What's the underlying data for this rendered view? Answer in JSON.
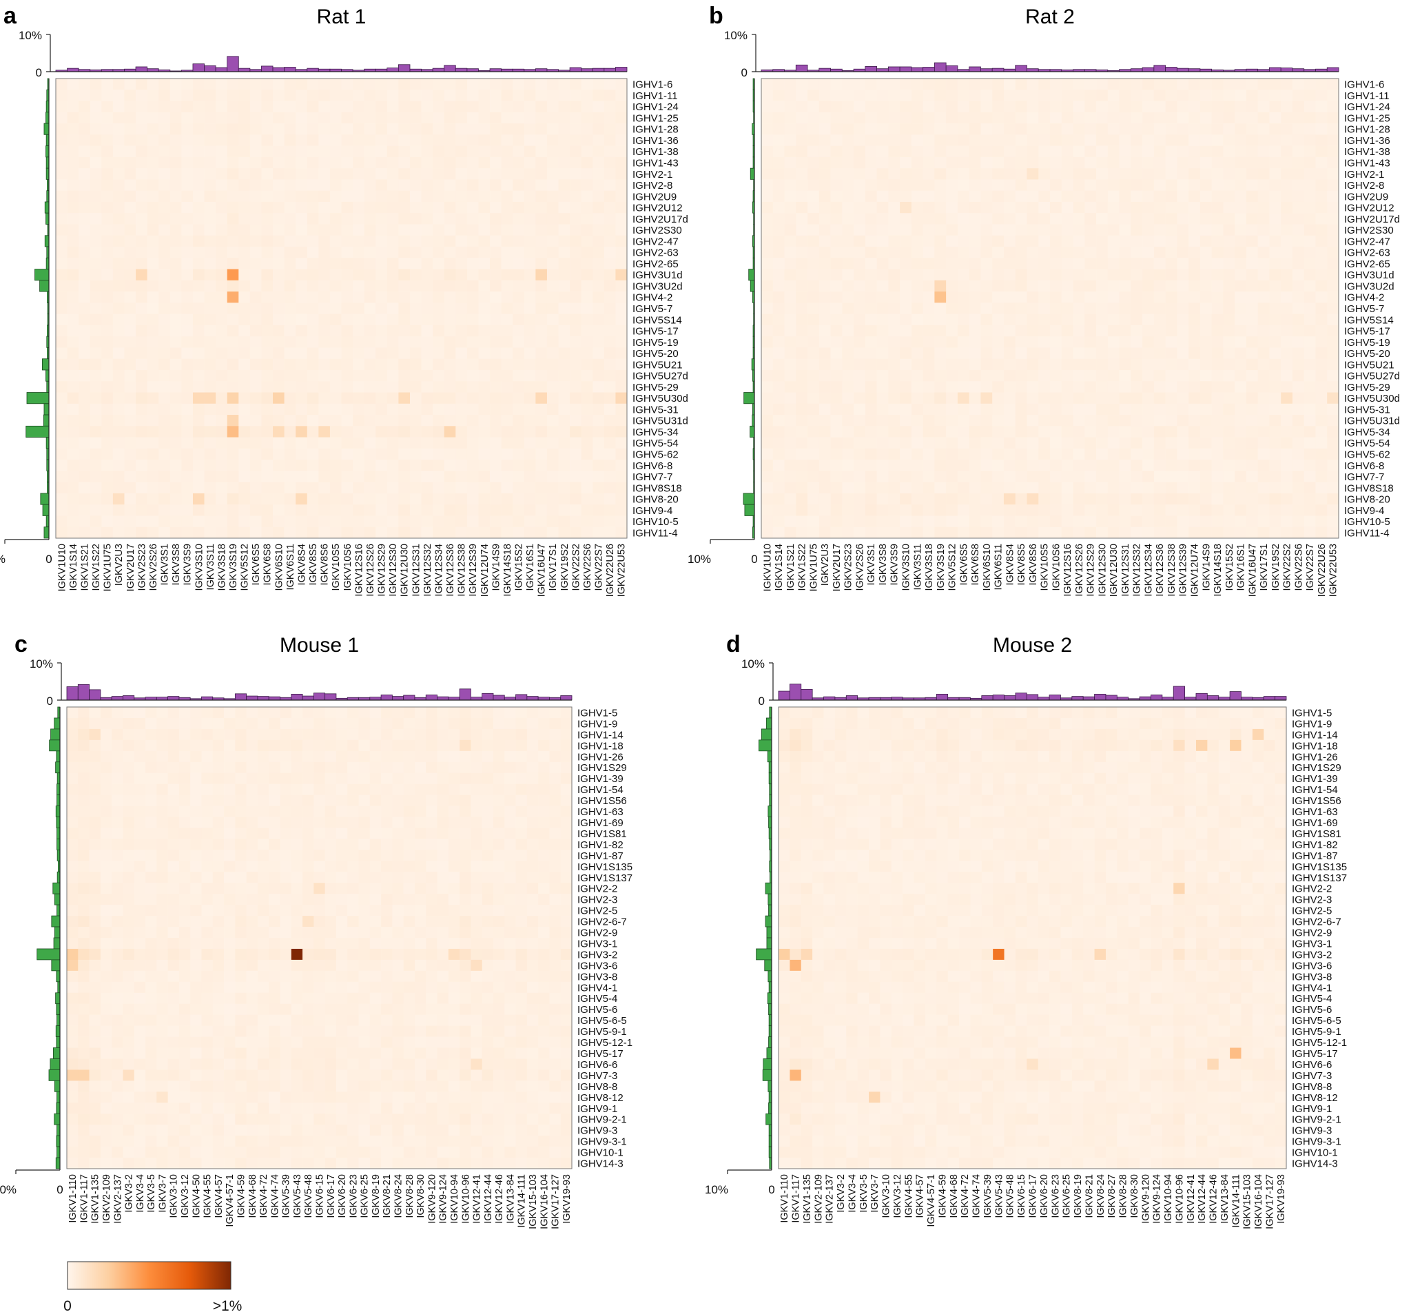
{
  "figure": {
    "colorbar": {
      "min_label": "0",
      "max_label": ">1%",
      "colors": [
        "#fff5ec",
        "#fdd0a2",
        "#fd8d3c",
        "#e55a0a",
        "#7f2704"
      ]
    },
    "bar_colors": {
      "top": "#9b4fb0",
      "side": "#3fa848"
    },
    "cell_base_color": "#fff5ec"
  },
  "chart_data": [
    {
      "type": "heatmap",
      "panel_letter": "a",
      "title": "Rat 1",
      "top_axis": {
        "max_label": "10%",
        "zero_label": "0"
      },
      "side_axis": {
        "max_label": "10%",
        "zero_label": "0"
      },
      "x": [
        "IGKV1U10",
        "IGKV1S14",
        "IGKV1S21",
        "IGKV1S22",
        "IGKV1U75",
        "IGKV2U3",
        "IGKV2U17",
        "IGKV2S23",
        "IGKV2S26",
        "IGKV3S1",
        "IGKV3S8",
        "IGKV3S9",
        "IGKV3S10",
        "IGKV3S11",
        "IGKV3S18",
        "IGKV3S19",
        "IGKV5S12",
        "IGKV6S5",
        "IGKV6S8",
        "IGKV6S10",
        "IGKV6S11",
        "IGKV8S4",
        "IGKV8S5",
        "IGKV8S6",
        "IGKV10S5",
        "IGKV10S6",
        "IGKV12S16",
        "IGKV12S26",
        "IGKV12S29",
        "IGKV12S30",
        "IGKV12U30",
        "IGKV12S31",
        "IGKV12S32",
        "IGKV12S34",
        "IGKV12S36",
        "IGKV12S38",
        "IGKV12S39",
        "IGKV12U74",
        "IGKV14S9",
        "IGKV14S18",
        "IGKV15S2",
        "IGKV16S1",
        "IGKV16U47",
        "IGKV17S1",
        "IGKV19S2",
        "IGKV22S2",
        "IGKV22S6",
        "IGKV22S7",
        "IGKV22U26",
        "IGKV22U53"
      ],
      "y": [
        "IGHV1-6",
        "IGHV1-11",
        "IGHV1-24",
        "IGHV1-25",
        "IGHV1-28",
        "IGHV1-36",
        "IGHV1-38",
        "IGHV1-43",
        "IGHV2-1",
        "IGHV2-8",
        "IGHV2U9",
        "IGHV2U12",
        "IGHV2U17d",
        "IGHV2S30",
        "IGHV2-47",
        "IGHV2-63",
        "IGHV2-65",
        "IGHV3U1d",
        "IGHV3U2d",
        "IGHV4-2",
        "IGHV5-7",
        "IGHV5S14",
        "IGHV5-17",
        "IGHV5-19",
        "IGHV5-20",
        "IGHV5U21",
        "IGHV5U27d",
        "IGHV5-29",
        "IGHV5U30d",
        "IGHV5-31",
        "IGHV5U31d",
        "IGHV5-34",
        "IGHV5-54",
        "IGHV5-62",
        "IGHV6-8",
        "IGHV7-7",
        "IGHV8S18",
        "IGHV8-20",
        "IGHV9-4",
        "IGHV10-5",
        "IGHV11-4"
      ],
      "top_values": [
        0.4,
        0.9,
        0.6,
        0.5,
        0.6,
        0.6,
        0.7,
        1.3,
        0.8,
        0.5,
        0.2,
        0.4,
        2.1,
        1.6,
        1.1,
        4.1,
        0.9,
        0.6,
        1.5,
        1.1,
        1.2,
        0.6,
        0.9,
        0.7,
        0.7,
        0.6,
        0.4,
        0.7,
        0.7,
        1.0,
        1.9,
        0.7,
        0.6,
        0.9,
        1.7,
        0.9,
        0.8,
        0.3,
        0.8,
        0.7,
        0.7,
        0.6,
        0.8,
        0.6,
        0.4,
        1.1,
        0.8,
        0.9,
        0.9,
        1.2
      ],
      "side_values": [
        0.3,
        0.5,
        0.6,
        0.7,
        1.1,
        0.6,
        0.7,
        0.6,
        0.6,
        0.4,
        0.5,
        0.9,
        0.7,
        0.3,
        0.9,
        0.5,
        0.6,
        3.2,
        2.1,
        0.4,
        0.3,
        0.3,
        0.4,
        0.5,
        0.4,
        1.5,
        0.7,
        0.5,
        5.0,
        1.1,
        1.2,
        5.2,
        0.6,
        0.5,
        0.5,
        0.4,
        0.4,
        1.9,
        1.4,
        0.6,
        1.1
      ],
      "hot_cells": [
        [
          17,
          15,
          0.45
        ],
        [
          19,
          15,
          0.38
        ],
        [
          31,
          15,
          0.32
        ],
        [
          28,
          15,
          0.22
        ],
        [
          30,
          15,
          0.2
        ],
        [
          17,
          7,
          0.18
        ],
        [
          17,
          42,
          0.2
        ],
        [
          17,
          49,
          0.17
        ],
        [
          28,
          19,
          0.22
        ],
        [
          28,
          30,
          0.17
        ],
        [
          28,
          42,
          0.18
        ],
        [
          28,
          49,
          0.18
        ],
        [
          28,
          12,
          0.18
        ],
        [
          28,
          13,
          0.18
        ],
        [
          31,
          34,
          0.2
        ],
        [
          31,
          21,
          0.2
        ],
        [
          31,
          19,
          0.17
        ],
        [
          31,
          23,
          0.17
        ],
        [
          37,
          12,
          0.18
        ],
        [
          37,
          21,
          0.17
        ],
        [
          37,
          5,
          0.14
        ]
      ]
    },
    {
      "type": "heatmap",
      "panel_letter": "b",
      "title": "Rat 2",
      "top_axis": {
        "max_label": "10%",
        "zero_label": "0"
      },
      "side_axis": {
        "max_label": "10%",
        "zero_label": "0"
      },
      "x": [
        "IGKV1U10",
        "IGKV1S14",
        "IGKV1S21",
        "IGKV1S22",
        "IGKV1U75",
        "IGKV2U3",
        "IGKV2U17",
        "IGKV2S23",
        "IGKV2S26",
        "IGKV3S1",
        "IGKV3S8",
        "IGKV3S9",
        "IGKV3S10",
        "IGKV3S11",
        "IGKV3S18",
        "IGKV3S19",
        "IGKV5S12",
        "IGKV6S5",
        "IGKV6S8",
        "IGKV6S10",
        "IGKV6S11",
        "IGKV8S4",
        "IGKV8S5",
        "IGKV8S6",
        "IGKV10S5",
        "IGKV10S6",
        "IGKV12S16",
        "IGKV12S26",
        "IGKV12S29",
        "IGKV12S30",
        "IGKV12U30",
        "IGKV12S31",
        "IGKV12S32",
        "IGKV12S34",
        "IGKV12S36",
        "IGKV12S38",
        "IGKV12S39",
        "IGKV12U74",
        "IGKV14S9",
        "IGKV14S18",
        "IGKV15S2",
        "IGKV16S1",
        "IGKV16U47",
        "IGKV17S1",
        "IGKV19S2",
        "IGKV22S2",
        "IGKV22S6",
        "IGKV22S7",
        "IGKV22U26",
        "IGKV22U53"
      ],
      "y": [
        "IGHV1-6",
        "IGHV1-11",
        "IGHV1-24",
        "IGHV1-25",
        "IGHV1-28",
        "IGHV1-36",
        "IGHV1-38",
        "IGHV1-43",
        "IGHV2-1",
        "IGHV2-8",
        "IGHV2U9",
        "IGHV2U12",
        "IGHV2U17d",
        "IGHV2S30",
        "IGHV2-47",
        "IGHV2-63",
        "IGHV2-65",
        "IGHV3U1d",
        "IGHV3U2d",
        "IGHV4-2",
        "IGHV5-7",
        "IGHV5S14",
        "IGHV5-17",
        "IGHV5-19",
        "IGHV5-20",
        "IGHV5U21",
        "IGHV5U27d",
        "IGHV5-29",
        "IGHV5U30d",
        "IGHV5-31",
        "IGHV5U31d",
        "IGHV5-34",
        "IGHV5-54",
        "IGHV5-62",
        "IGHV6-8",
        "IGHV7-7",
        "IGHV8S18",
        "IGHV8-20",
        "IGHV9-4",
        "IGHV10-5",
        "IGHV11-4"
      ],
      "top_values": [
        0.5,
        0.6,
        0.4,
        1.8,
        0.4,
        0.9,
        0.7,
        0.3,
        0.7,
        1.4,
        0.8,
        1.3,
        1.3,
        1.1,
        1.2,
        2.4,
        1.6,
        0.6,
        1.3,
        0.8,
        0.9,
        0.7,
        1.7,
        0.8,
        0.6,
        0.6,
        0.5,
        0.6,
        0.6,
        0.5,
        0.3,
        0.6,
        0.8,
        1.1,
        1.7,
        1.2,
        0.9,
        0.8,
        0.7,
        0.5,
        0.4,
        0.6,
        0.7,
        0.6,
        1.1,
        1.0,
        0.8,
        0.6,
        0.7,
        1.1
      ],
      "side_values": [
        0.3,
        0.3,
        0.3,
        0.2,
        0.5,
        0.3,
        0.3,
        0.3,
        0.9,
        0.2,
        0.3,
        0.4,
        0.2,
        0.2,
        0.4,
        0.3,
        0.3,
        1.3,
        0.9,
        0.4,
        0.2,
        0.2,
        0.3,
        0.3,
        0.3,
        0.6,
        0.4,
        0.3,
        2.4,
        0.4,
        0.5,
        1.0,
        0.2,
        0.3,
        0.2,
        0.2,
        0.2,
        2.5,
        2.2,
        0.3,
        0.4
      ],
      "hot_cells": [
        [
          19,
          15,
          0.3
        ],
        [
          18,
          15,
          0.18
        ],
        [
          28,
          17,
          0.12
        ],
        [
          28,
          19,
          0.12
        ],
        [
          28,
          45,
          0.13
        ],
        [
          28,
          49,
          0.12
        ],
        [
          37,
          21,
          0.14
        ],
        [
          37,
          23,
          0.14
        ],
        [
          11,
          12,
          0.1
        ],
        [
          8,
          23,
          0.1
        ]
      ]
    },
    {
      "type": "heatmap",
      "panel_letter": "c",
      "title": "Mouse 1",
      "top_axis": {
        "max_label": "10%",
        "zero_label": "0"
      },
      "side_axis": {
        "max_label": "10%",
        "zero_label": "0"
      },
      "x": [
        "IGKV1-110",
        "IGKV1-117",
        "IGKV1-135",
        "IGKV2-109",
        "IGKV2-137",
        "IGKV3-2",
        "IGKV3-4",
        "IGKV3-5",
        "IGKV3-7",
        "IGKV3-10",
        "IGKV3-12",
        "IGKV4-50",
        "IGKV4-55",
        "IGKV4-57",
        "IGKV4-57-1",
        "IGKV4-59",
        "IGKV4-68",
        "IGKV4-72",
        "IGKV4-74",
        "IGKV5-39",
        "IGKV5-43",
        "IGKV5-48",
        "IGKV6-15",
        "IGKV6-17",
        "IGKV6-20",
        "IGKV6-23",
        "IGKV6-25",
        "IGKV8-19",
        "IGKV8-21",
        "IGKV8-24",
        "IGKV8-28",
        "IGKV8-30",
        "IGKV9-120",
        "IGKV9-124",
        "IGKV10-94",
        "IGKV10-96",
        "IGKV12-41",
        "IGKV12-44",
        "IGKV12-46",
        "IGKV13-84",
        "IGKV14-111",
        "IGKV15-103",
        "IGKV16-104",
        "IGKV17-127",
        "IGKV19-93"
      ],
      "y": [
        "IGHV1-5",
        "IGHV1-9",
        "IGHV1-14",
        "IGHV1-18",
        "IGHV1-26",
        "IGHV1S29",
        "IGHV1-39",
        "IGHV1-54",
        "IGHV1S56",
        "IGHV1-63",
        "IGHV1-69",
        "IGHV1S81",
        "IGHV1-82",
        "IGHV1-87",
        "IGHV1S135",
        "IGHV1S137",
        "IGHV2-2",
        "IGHV2-3",
        "IGHV2-5",
        "IGHV2-6-7",
        "IGHV2-9",
        "IGHV3-1",
        "IGHV3-2",
        "IGHV3-6",
        "IGHV3-8",
        "IGHV4-1",
        "IGHV5-4",
        "IGHV5-6",
        "IGHV5-6-5",
        "IGHV5-9-1",
        "IGHV5-12-1",
        "IGHV5-17",
        "IGHV6-6",
        "IGHV7-3",
        "IGHV8-8",
        "IGHV8-12",
        "IGHV9-1",
        "IGHV9-2-1",
        "IGHV9-3",
        "IGHV9-3-1",
        "IGHV10-1",
        "IGHV14-3"
      ],
      "top_values": [
        3.6,
        4.2,
        2.8,
        0.7,
        1.0,
        1.2,
        0.6,
        0.8,
        0.8,
        1.0,
        0.7,
        0.4,
        0.9,
        0.6,
        0.4,
        1.7,
        1.1,
        1.0,
        0.9,
        0.7,
        1.6,
        1.1,
        1.9,
        1.7,
        0.5,
        0.7,
        0.7,
        0.8,
        1.4,
        1.0,
        1.3,
        0.7,
        1.4,
        0.9,
        0.8,
        3.0,
        0.8,
        1.8,
        1.3,
        0.8,
        1.5,
        1.0,
        0.8,
        0.7,
        1.2
      ],
      "side_values": [
        0.5,
        1.3,
        2.1,
        2.4,
        0.8,
        1.0,
        0.6,
        0.7,
        0.7,
        0.9,
        0.8,
        0.7,
        0.7,
        0.6,
        0.4,
        0.6,
        1.6,
        1.2,
        0.7,
        1.9,
        1.2,
        1.4,
        5.2,
        1.9,
        0.8,
        0.5,
        1.0,
        0.8,
        0.7,
        0.9,
        0.8,
        1.5,
        2.2,
        2.5,
        1.2,
        0.7,
        0.8,
        1.3,
        0.7,
        0.8,
        0.7,
        0.9
      ],
      "hot_cells": [
        [
          22,
          20,
          1.0
        ],
        [
          22,
          0,
          0.25
        ],
        [
          23,
          0,
          0.22
        ],
        [
          33,
          0,
          0.22
        ],
        [
          33,
          1,
          0.22
        ],
        [
          33,
          5,
          0.14
        ],
        [
          22,
          34,
          0.15
        ],
        [
          23,
          36,
          0.14
        ],
        [
          16,
          22,
          0.13
        ],
        [
          19,
          21,
          0.12
        ],
        [
          2,
          2,
          0.12
        ],
        [
          3,
          35,
          0.12
        ],
        [
          32,
          36,
          0.12
        ],
        [
          35,
          8,
          0.1
        ]
      ]
    },
    {
      "type": "heatmap",
      "panel_letter": "d",
      "title": "Mouse 2",
      "top_axis": {
        "max_label": "10%",
        "zero_label": "0"
      },
      "side_axis": {
        "max_label": "10%",
        "zero_label": "0"
      },
      "x": [
        "IGKV1-110",
        "IGKV1-117",
        "IGKV1-135",
        "IGKV2-109",
        "IGKV2-137",
        "IGKV3-2",
        "IGKV3-4",
        "IGKV3-5",
        "IGKV3-7",
        "IGKV3-10",
        "IGKV3-12",
        "IGKV4-55",
        "IGKV4-57",
        "IGKV4-57-1",
        "IGKV4-59",
        "IGKV4-68",
        "IGKV4-72",
        "IGKV4-74",
        "IGKV5-39",
        "IGKV5-43",
        "IGKV5-48",
        "IGKV6-15",
        "IGKV6-17",
        "IGKV6-20",
        "IGKV6-23",
        "IGKV6-25",
        "IGKV8-19",
        "IGKV8-21",
        "IGKV8-24",
        "IGKV8-27",
        "IGKV8-28",
        "IGKV8-30",
        "IGKV9-120",
        "IGKV9-124",
        "IGKV10-94",
        "IGKV10-96",
        "IGKV12-41",
        "IGKV12-44",
        "IGKV12-46",
        "IGKV13-84",
        "IGKV14-111",
        "IGKV15-103",
        "IGKV16-104",
        "IGKV17-127",
        "IGKV19-93"
      ],
      "y": [
        "IGHV1-5",
        "IGHV1-9",
        "IGHV1-14",
        "IGHV1-18",
        "IGHV1-26",
        "IGHV1S29",
        "IGHV1-39",
        "IGHV1-54",
        "IGHV1S56",
        "IGHV1-63",
        "IGHV1-69",
        "IGHV1S81",
        "IGHV1-82",
        "IGHV1-87",
        "IGHV1S135",
        "IGHV1S137",
        "IGHV2-2",
        "IGHV2-3",
        "IGHV2-5",
        "IGHV2-6-7",
        "IGHV2-9",
        "IGHV3-1",
        "IGHV3-2",
        "IGHV3-6",
        "IGHV3-8",
        "IGHV4-1",
        "IGHV5-4",
        "IGHV5-6",
        "IGHV5-6-5",
        "IGHV5-9-1",
        "IGHV5-12-1",
        "IGHV5-17",
        "IGHV6-6",
        "IGHV7-3",
        "IGHV8-8",
        "IGHV8-12",
        "IGHV9-1",
        "IGHV9-2-1",
        "IGHV9-3",
        "IGHV9-3-1",
        "IGHV10-1",
        "IGHV14-3"
      ],
      "top_values": [
        2.4,
        4.3,
        2.9,
        0.6,
        0.9,
        0.7,
        1.2,
        0.6,
        0.7,
        0.7,
        0.8,
        0.6,
        0.6,
        0.7,
        1.6,
        0.7,
        0.7,
        0.5,
        1.2,
        1.4,
        1.2,
        1.9,
        1.5,
        0.8,
        1.4,
        0.6,
        1.0,
        0.9,
        1.6,
        1.3,
        0.8,
        0.4,
        0.9,
        1.4,
        0.8,
        3.7,
        0.8,
        1.8,
        1.2,
        0.8,
        2.3,
        0.8,
        0.7,
        1.0,
        1.0
      ],
      "side_values": [
        0.5,
        1.2,
        2.3,
        2.9,
        0.9,
        0.6,
        0.6,
        0.5,
        0.5,
        0.8,
        0.7,
        0.6,
        0.5,
        0.4,
        0.5,
        0.4,
        1.4,
        0.8,
        0.7,
        1.4,
        1.1,
        1.1,
        3.5,
        1.6,
        0.8,
        0.6,
        0.9,
        0.7,
        0.6,
        0.6,
        0.7,
        1.1,
        1.9,
        2.0,
        0.8,
        0.6,
        0.7,
        1.3,
        0.6,
        0.6,
        0.6,
        0.5
      ],
      "hot_cells": [
        [
          22,
          19,
          0.62
        ],
        [
          23,
          1,
          0.35
        ],
        [
          33,
          1,
          0.35
        ],
        [
          22,
          0,
          0.25
        ],
        [
          31,
          40,
          0.32
        ],
        [
          3,
          37,
          0.22
        ],
        [
          3,
          40,
          0.25
        ],
        [
          2,
          42,
          0.2
        ],
        [
          32,
          38,
          0.18
        ],
        [
          22,
          28,
          0.18
        ],
        [
          16,
          35,
          0.2
        ],
        [
          35,
          8,
          0.2
        ],
        [
          22,
          2,
          0.18
        ],
        [
          32,
          22,
          0.12
        ],
        [
          3,
          35,
          0.14
        ]
      ]
    }
  ]
}
